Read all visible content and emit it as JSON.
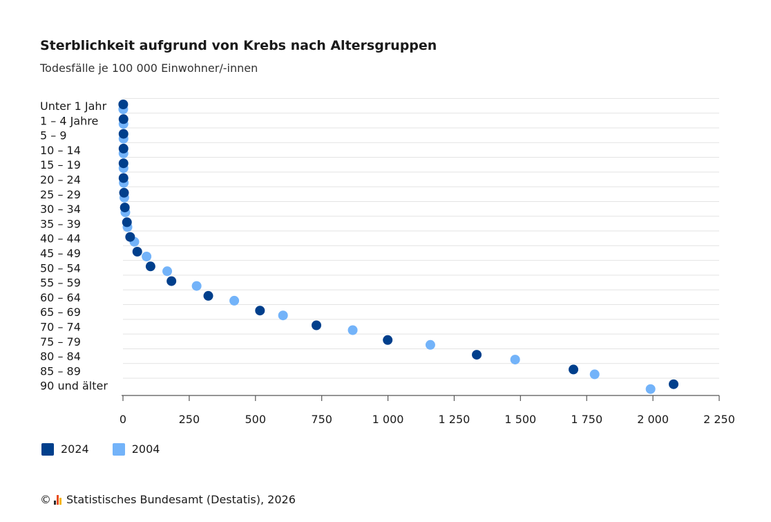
{
  "chart_data": {
    "type": "scatter",
    "title": "Sterblichkeit aufgrund von Krebs nach Altersgruppen",
    "subtitle": "Todesfälle je 100 000 Einwohner/-innen",
    "categories": [
      "Unter 1 Jahr",
      "1 – 4 Jahre",
      "5 – 9",
      "10 – 14",
      "15 – 19",
      "20 – 24",
      "25 – 29",
      "30 – 34",
      "35 – 39",
      "40 – 44",
      "45 – 49",
      "50 – 54",
      "55 – 59",
      "60 – 64",
      "65 – 69",
      "70 – 74",
      "75 – 79",
      "80 – 84",
      "85 – 89",
      "90 und älter"
    ],
    "series": [
      {
        "name": "2024",
        "color": "#003f8c",
        "values": [
          1,
          2,
          2,
          2,
          2,
          2,
          4,
          7,
          15,
          27,
          54,
          104,
          183,
          322,
          517,
          730,
          999,
          1335,
          1700,
          2078
        ]
      },
      {
        "name": "2004",
        "color": "#73b3f9",
        "values": [
          1,
          2,
          2,
          2,
          2,
          3,
          5,
          9,
          17,
          43,
          89,
          167,
          278,
          420,
          604,
          867,
          1160,
          1480,
          1780,
          1991
        ]
      }
    ],
    "xlim": [
      0,
      2250
    ],
    "xticks": [
      0,
      250,
      500,
      750,
      1000,
      1250,
      1500,
      1750,
      2000,
      2250
    ],
    "xtick_labels": [
      "0",
      "250",
      "500",
      "750",
      "1 000",
      "1 250",
      "1 500",
      "1 750",
      "2 000",
      "2 250"
    ],
    "grid": true,
    "legend_position": "bottom-left"
  },
  "source": {
    "copyright_symbol": "©",
    "text": "Statistisches Bundesamt (Destatis), 2026",
    "logo_icon": "destatis-logo-icon",
    "logo_colors": [
      "#2b2b2b",
      "#e84b1b",
      "#f5b700"
    ]
  }
}
